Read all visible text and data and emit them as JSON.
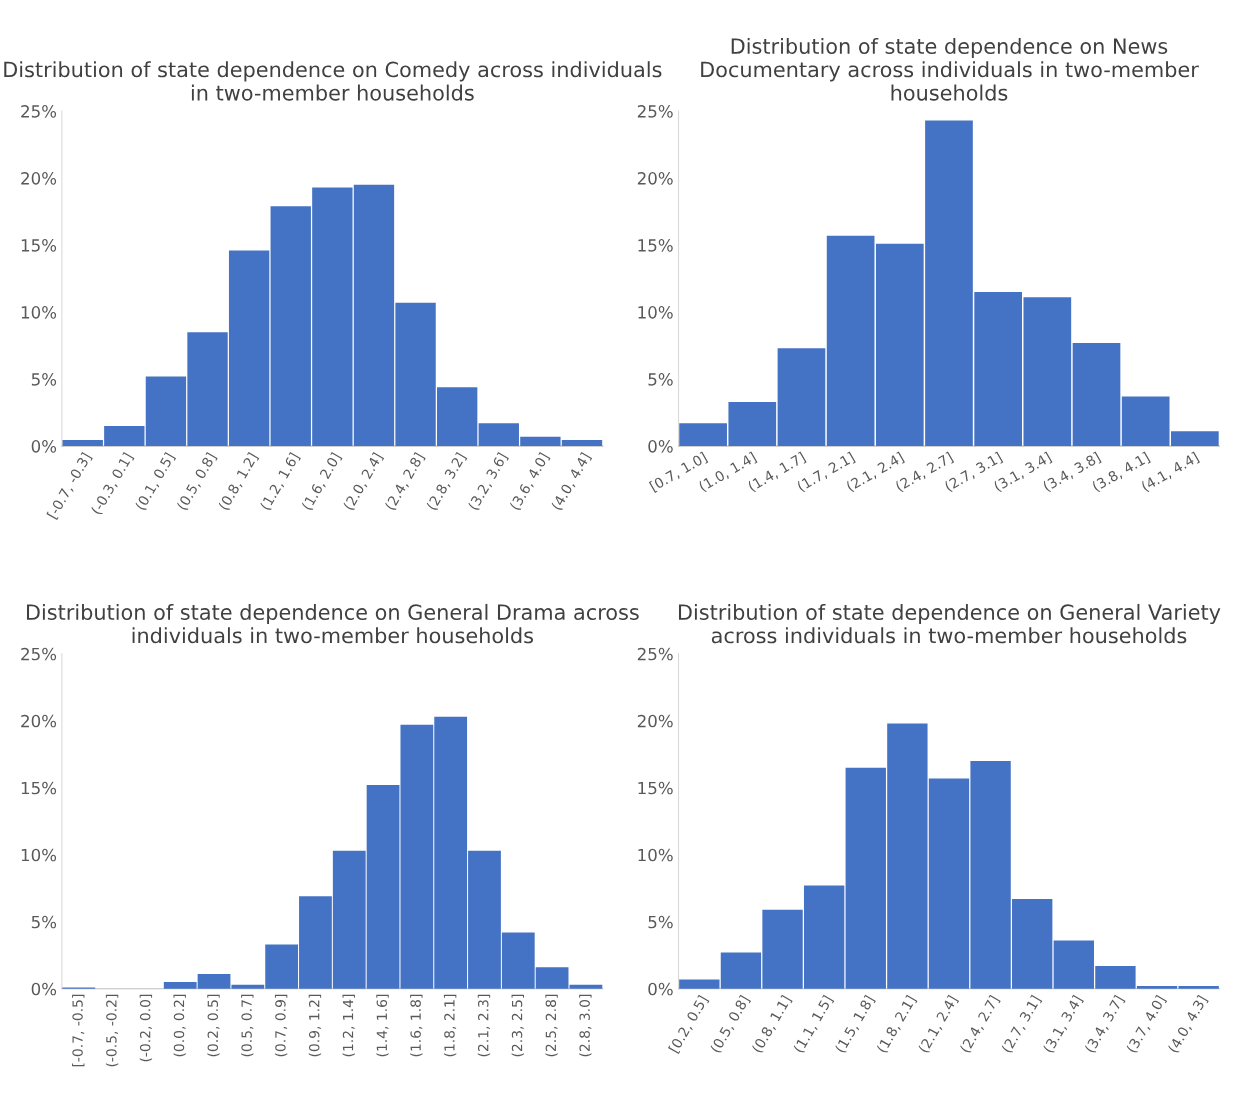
{
  "chart_data": [
    {
      "type": "bar",
      "title": "Distribution of state dependence on Comedy across individuals in two-member households",
      "categories": [
        "[-0.7, -0.3]",
        "(-0.3, 0.1]",
        "(0.1, 0.5]",
        "(0.5, 0.8]",
        "(0.8, 1.2]",
        "(1.2, 1.6]",
        "(1.6, 2.0]",
        "(2.0, 2.4]",
        "(2.4, 2.8]",
        "(2.8, 3.2]",
        "(3.2, 3.6]",
        "(3.6, 4.0]",
        "(4.0, 4.4]"
      ],
      "values": [
        0.45,
        1.5,
        5.2,
        8.5,
        14.6,
        17.9,
        19.3,
        19.5,
        10.7,
        4.4,
        1.7,
        0.7,
        0.45
      ],
      "color": "#4472c4",
      "ylim": [
        0,
        25
      ],
      "yticks": [
        {
          "value": 0,
          "label": "0%"
        },
        {
          "value": 5,
          "label": "5%"
        },
        {
          "value": 10,
          "label": "10%"
        },
        {
          "value": 15,
          "label": "15%"
        },
        {
          "value": 20,
          "label": "20%"
        },
        {
          "value": 25,
          "label": "25%"
        }
      ],
      "grid": false
    },
    {
      "type": "bar",
      "title": "Distribution of state dependence on News Documentary across individuals in two-member households",
      "categories": [
        "[0.7, 1.0]",
        "(1.0, 1.4]",
        "(1.4, 1.7]",
        "(1.7, 2.1]",
        "(2.1, 2.4]",
        "(2.4, 2.7]",
        "(2.7, 3.1]",
        "(3.1, 3.4]",
        "(3.4, 3.8]",
        "(3.8, 4.1]",
        "(4.1, 4.4]"
      ],
      "values": [
        1.7,
        3.3,
        7.3,
        15.7,
        15.1,
        24.3,
        11.5,
        11.1,
        7.7,
        3.7,
        1.1
      ],
      "color": "#4472c4",
      "ylim": [
        0,
        25
      ],
      "yticks": [
        {
          "value": 0,
          "label": "0%"
        },
        {
          "value": 5,
          "label": "5%"
        },
        {
          "value": 10,
          "label": "10%"
        },
        {
          "value": 15,
          "label": "15%"
        },
        {
          "value": 20,
          "label": "20%"
        },
        {
          "value": 25,
          "label": "25%"
        }
      ],
      "grid": false
    },
    {
      "type": "bar",
      "title": "Distribution of state dependence on General Drama across individuals in two-member households",
      "categories": [
        "[-0.7, -0.5]",
        "(-0.5, -0.2]",
        "(-0.2, 0.0]",
        "(0.0, 0.2]",
        "(0.2, 0.5]",
        "(0.5, 0.7]",
        "(0.7, 0.9]",
        "(0.9, 1.2]",
        "(1.2, 1.4]",
        "(1.4, 1.6]",
        "(1.6, 1.8]",
        "(1.8, 2.1]",
        "(2.1, 2.3]",
        "(2.3, 2.5]",
        "(2.5, 2.8]",
        "(2.8, 3.0]"
      ],
      "values": [
        0.1,
        0,
        0,
        0.5,
        1.1,
        0.3,
        3.3,
        6.9,
        10.3,
        15.2,
        19.7,
        20.3,
        10.3,
        4.2,
        1.6,
        0.3
      ],
      "color": "#4472c4",
      "ylim": [
        0,
        25
      ],
      "yticks": [
        {
          "value": 0,
          "label": "0%"
        },
        {
          "value": 5,
          "label": "5%"
        },
        {
          "value": 10,
          "label": "10%"
        },
        {
          "value": 15,
          "label": "15%"
        },
        {
          "value": 20,
          "label": "20%"
        },
        {
          "value": 25,
          "label": "25%"
        }
      ],
      "grid": false
    },
    {
      "type": "bar",
      "title": "Distribution of state dependence on General Variety across individuals in two-member households",
      "categories": [
        "[0.2, 0.5]",
        "(0.5, 0.8]",
        "(0.8, 1.1]",
        "(1.1, 1.5]",
        "(1.5, 1.8]",
        "(1.8, 2.1]",
        "(2.1, 2.4]",
        "(2.4, 2.7]",
        "(2.7, 3.1]",
        "(3.1, 3.4]",
        "(3.4, 3.7]",
        "(3.7, 4.0]",
        "(4.0, 4.3]"
      ],
      "values": [
        0.7,
        2.7,
        5.9,
        7.7,
        16.5,
        19.8,
        15.7,
        17.0,
        6.7,
        3.6,
        1.7,
        0.2,
        0.2
      ],
      "color": "#4472c4",
      "ylim": [
        0,
        25
      ],
      "yticks": [
        {
          "value": 0,
          "label": "0%"
        },
        {
          "value": 5,
          "label": "5%"
        },
        {
          "value": 10,
          "label": "10%"
        },
        {
          "value": 15,
          "label": "15%"
        },
        {
          "value": 20,
          "label": "20%"
        },
        {
          "value": 25,
          "label": "25%"
        }
      ],
      "grid": false
    }
  ]
}
